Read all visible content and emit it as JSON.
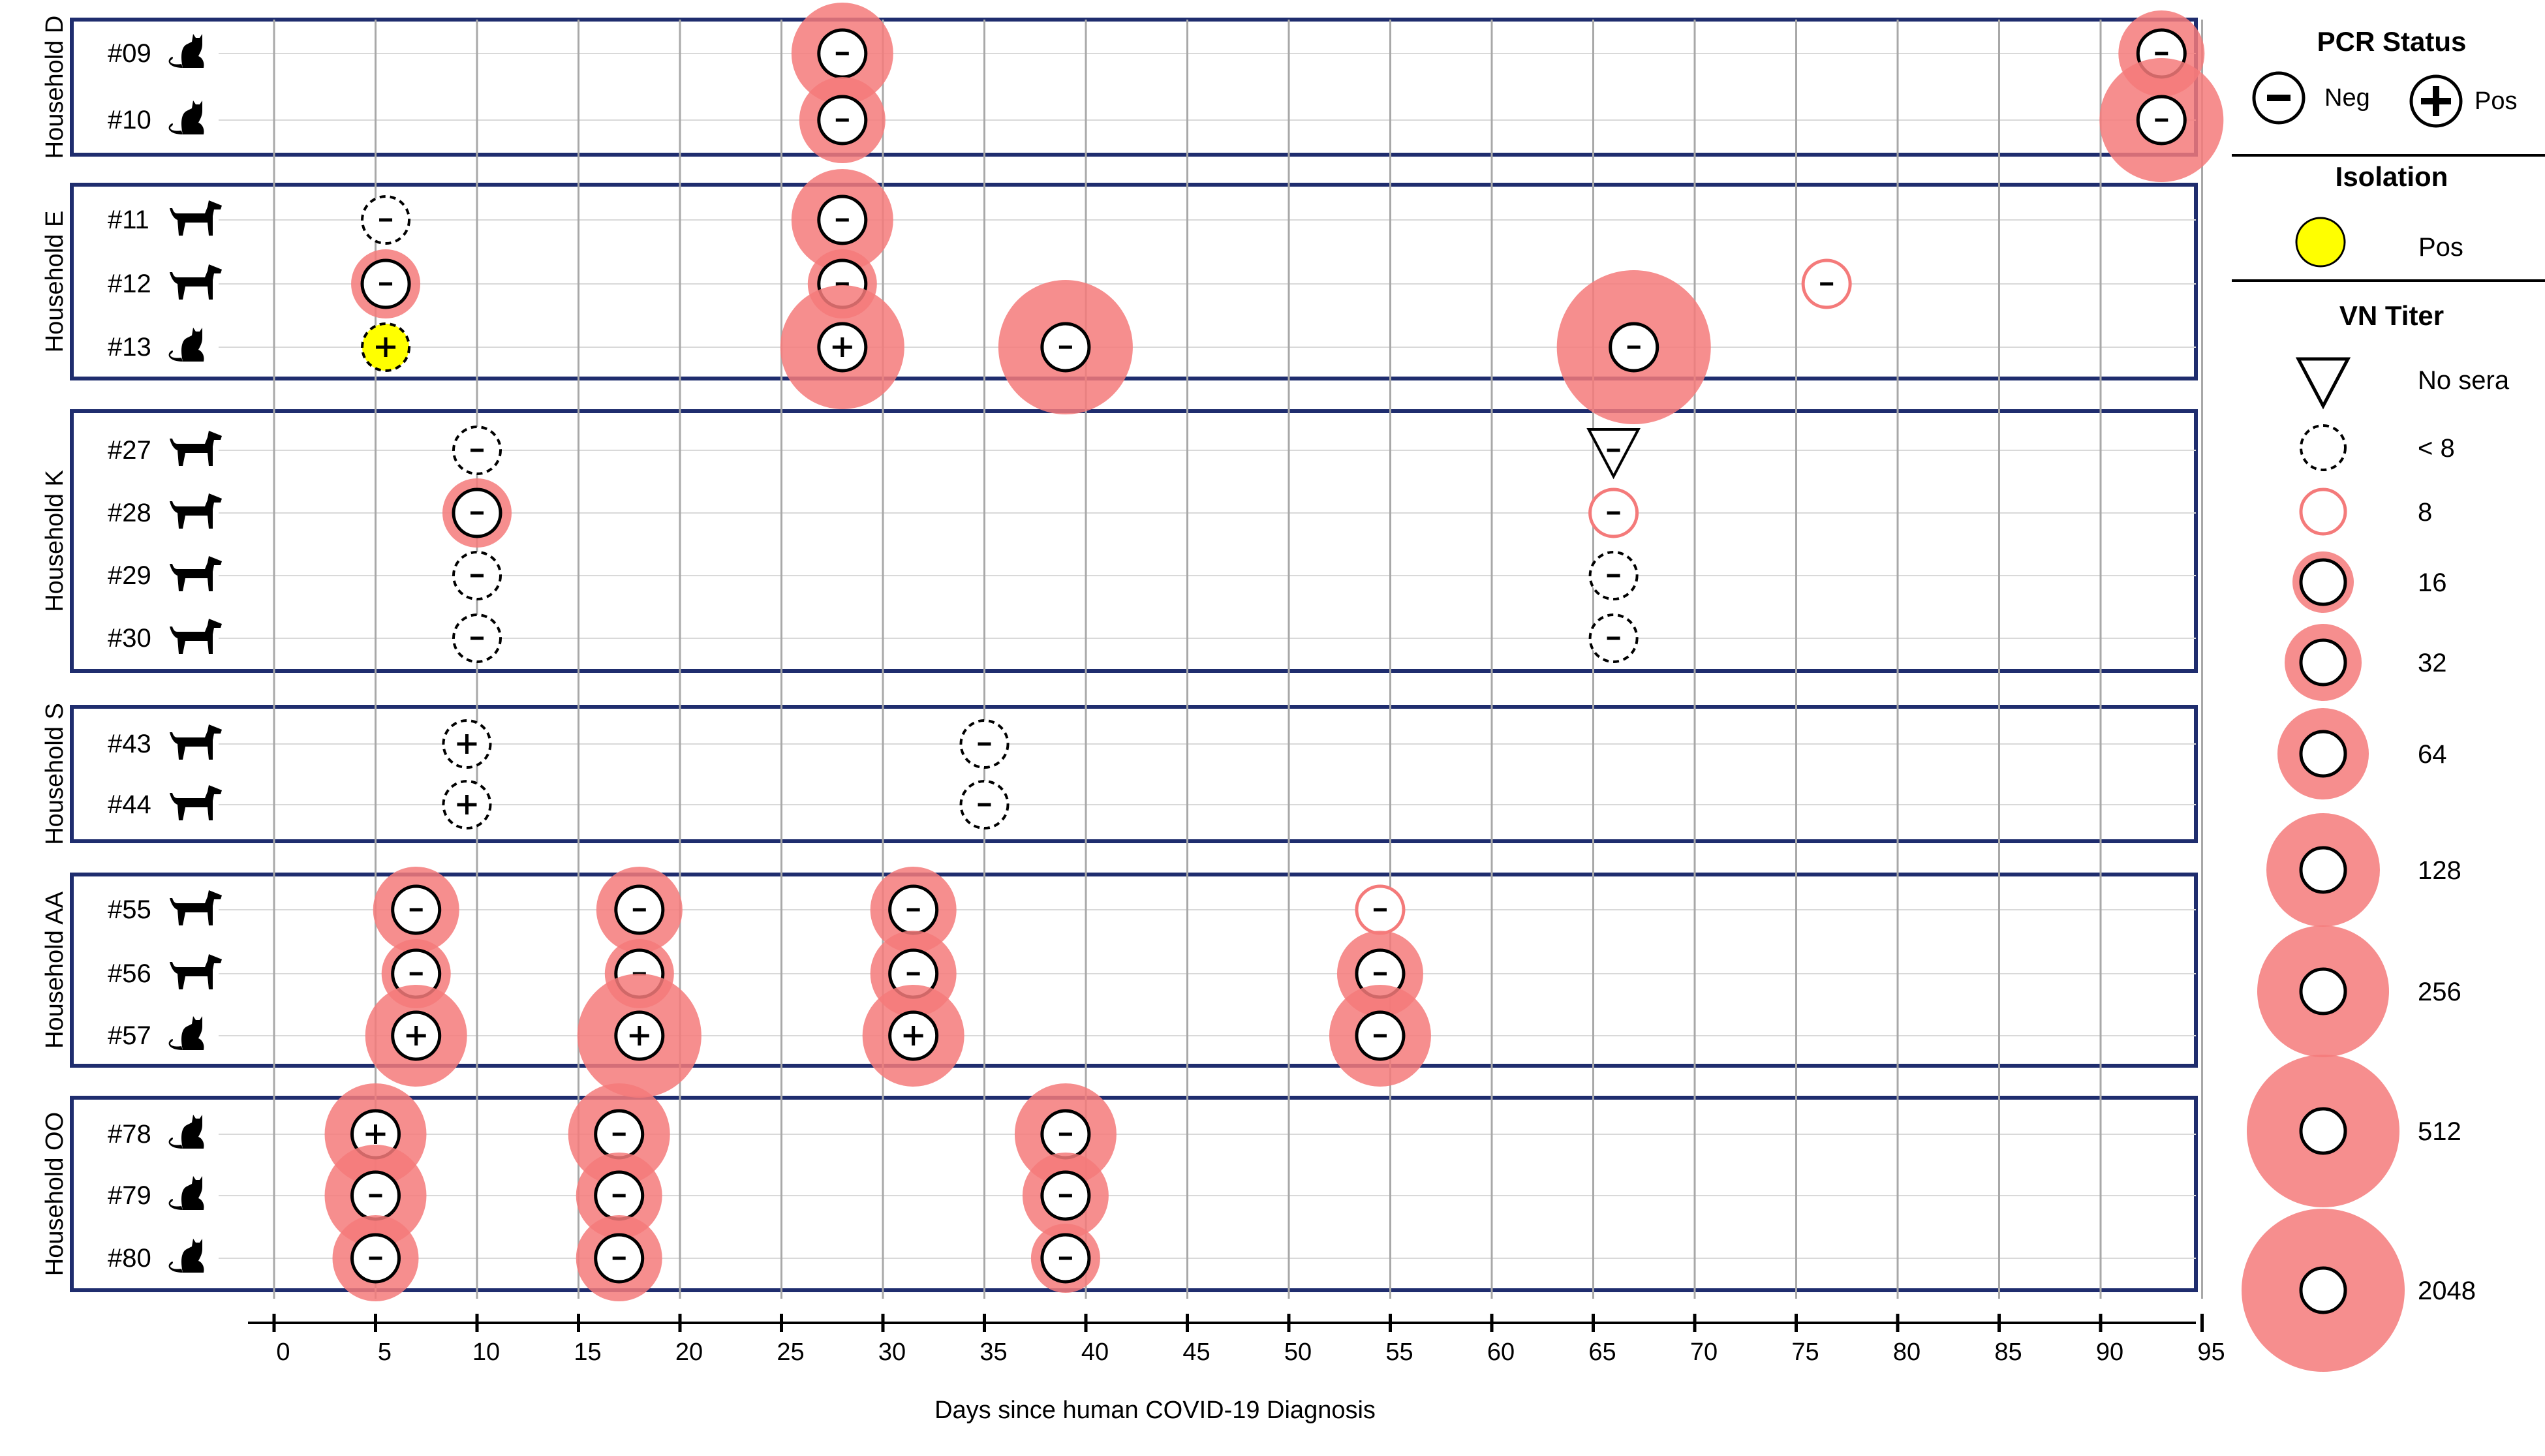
{
  "chart_data": {
    "type": "scatter",
    "xlabel": "Days since human COVID-19 Diagnosis",
    "xlim": [
      0,
      95
    ],
    "x_ticks": [
      0,
      5,
      10,
      15,
      20,
      25,
      30,
      35,
      40,
      45,
      50,
      55,
      60,
      65,
      70,
      75,
      80,
      85,
      90,
      95
    ],
    "grid": "vertical lines every 5 days",
    "households": [
      {
        "name": "Household D",
        "animals": [
          {
            "id": "#09",
            "species": "cat",
            "samples": [
              {
                "day": 28,
                "pcr": "-",
                "titer": "64"
              },
              {
                "day": 93,
                "pcr": "-",
                "titer": "32"
              }
            ]
          },
          {
            "id": "#10",
            "species": "cat",
            "samples": [
              {
                "day": 28,
                "pcr": "-",
                "titer": "32"
              },
              {
                "day": 93,
                "pcr": "-",
                "titer": "128"
              }
            ]
          }
        ]
      },
      {
        "name": "Household E",
        "animals": [
          {
            "id": "#11",
            "species": "dog",
            "samples": [
              {
                "day": 5.5,
                "pcr": "-",
                "titer": "<8"
              },
              {
                "day": 28,
                "pcr": "-",
                "titer": "64"
              }
            ]
          },
          {
            "id": "#12",
            "species": "dog",
            "samples": [
              {
                "day": 5.5,
                "pcr": "-",
                "titer": "16"
              },
              {
                "day": 28,
                "pcr": "-",
                "titer": "16"
              },
              {
                "day": 76.5,
                "pcr": "-",
                "titer": "8"
              }
            ]
          },
          {
            "id": "#13",
            "species": "cat",
            "samples": [
              {
                "day": 5.5,
                "pcr": "+",
                "titer": "<8",
                "isolation": "Pos"
              },
              {
                "day": 28,
                "pcr": "+",
                "titer": "128"
              },
              {
                "day": 39,
                "pcr": "-",
                "titer": "256"
              },
              {
                "day": 67,
                "pcr": "-",
                "titer": "512"
              }
            ]
          }
        ]
      },
      {
        "name": "Household K",
        "animals": [
          {
            "id": "#27",
            "species": "dog",
            "samples": [
              {
                "day": 10,
                "pcr": "-",
                "titer": "<8"
              },
              {
                "day": 66,
                "pcr": "-",
                "titer": "No sera"
              }
            ]
          },
          {
            "id": "#28",
            "species": "dog",
            "samples": [
              {
                "day": 10,
                "pcr": "-",
                "titer": "16"
              },
              {
                "day": 66,
                "pcr": "-",
                "titer": "8"
              }
            ]
          },
          {
            "id": "#29",
            "species": "dog",
            "samples": [
              {
                "day": 10,
                "pcr": "-",
                "titer": "<8"
              },
              {
                "day": 66,
                "pcr": "-",
                "titer": "<8"
              }
            ]
          },
          {
            "id": "#30",
            "species": "dog",
            "samples": [
              {
                "day": 10,
                "pcr": "-",
                "titer": "<8"
              },
              {
                "day": 66,
                "pcr": "-",
                "titer": "<8"
              }
            ]
          }
        ]
      },
      {
        "name": "Household S",
        "animals": [
          {
            "id": "#43",
            "species": "dog",
            "samples": [
              {
                "day": 9.5,
                "pcr": "+",
                "titer": "<8"
              },
              {
                "day": 35,
                "pcr": "-",
                "titer": "<8"
              }
            ]
          },
          {
            "id": "#44",
            "species": "dog",
            "samples": [
              {
                "day": 9.5,
                "pcr": "+",
                "titer": "<8"
              },
              {
                "day": 35,
                "pcr": "-",
                "titer": "<8"
              }
            ]
          }
        ]
      },
      {
        "name": "Household AA",
        "animals": [
          {
            "id": "#55",
            "species": "dog",
            "samples": [
              {
                "day": 7,
                "pcr": "-",
                "titer": "32"
              },
              {
                "day": 18,
                "pcr": "-",
                "titer": "32"
              },
              {
                "day": 31.5,
                "pcr": "-",
                "titer": "32"
              },
              {
                "day": 54.5,
                "pcr": "-",
                "titer": "8"
              }
            ]
          },
          {
            "id": "#56",
            "species": "dog",
            "samples": [
              {
                "day": 7,
                "pcr": "-",
                "titer": "16"
              },
              {
                "day": 18,
                "pcr": "-",
                "titer": "16"
              },
              {
                "day": 31.5,
                "pcr": "-",
                "titer": "32"
              },
              {
                "day": 54.5,
                "pcr": "-",
                "titer": "32"
              }
            ]
          },
          {
            "id": "#57",
            "species": "cat",
            "samples": [
              {
                "day": 7,
                "pcr": "+",
                "titer": "64"
              },
              {
                "day": 18,
                "pcr": "+",
                "titer": "128"
              },
              {
                "day": 31.5,
                "pcr": "+",
                "titer": "64"
              },
              {
                "day": 54.5,
                "pcr": "-",
                "titer": "64"
              }
            ]
          }
        ]
      },
      {
        "name": "Household OO",
        "animals": [
          {
            "id": "#78",
            "species": "cat",
            "samples": [
              {
                "day": 5,
                "pcr": "+",
                "titer": "64"
              },
              {
                "day": 17,
                "pcr": "-",
                "titer": "64"
              },
              {
                "day": 39,
                "pcr": "-",
                "titer": "64"
              }
            ]
          },
          {
            "id": "#79",
            "species": "cat",
            "samples": [
              {
                "day": 5,
                "pcr": "-",
                "titer": "64"
              },
              {
                "day": 17,
                "pcr": "-",
                "titer": "32"
              },
              {
                "day": 39,
                "pcr": "-",
                "titer": "32"
              }
            ]
          },
          {
            "id": "#80",
            "species": "cat",
            "samples": [
              {
                "day": 5,
                "pcr": "-",
                "titer": "32"
              },
              {
                "day": 17,
                "pcr": "-",
                "titer": "32"
              },
              {
                "day": 39,
                "pcr": "-",
                "titer": "16"
              }
            ]
          }
        ]
      }
    ],
    "legend": {
      "placement": "right",
      "pcr_title": "PCR Status",
      "pcr_items": [
        "Neg",
        "Pos"
      ],
      "isolation_title": "Isolation",
      "isolation_items": [
        "Pos"
      ],
      "titer_title": "VN Titer",
      "titer_items": [
        "No sera",
        "< 8",
        "8",
        "16",
        "32",
        "64",
        "128",
        "256",
        "512",
        "2048"
      ]
    },
    "colors": {
      "titer_fill": "#f47a7a",
      "frame": "#1f2d6e",
      "isolation_pos": "#ffff00",
      "grid": "#a8a8a8",
      "row_line": "#d9d9d9"
    }
  }
}
